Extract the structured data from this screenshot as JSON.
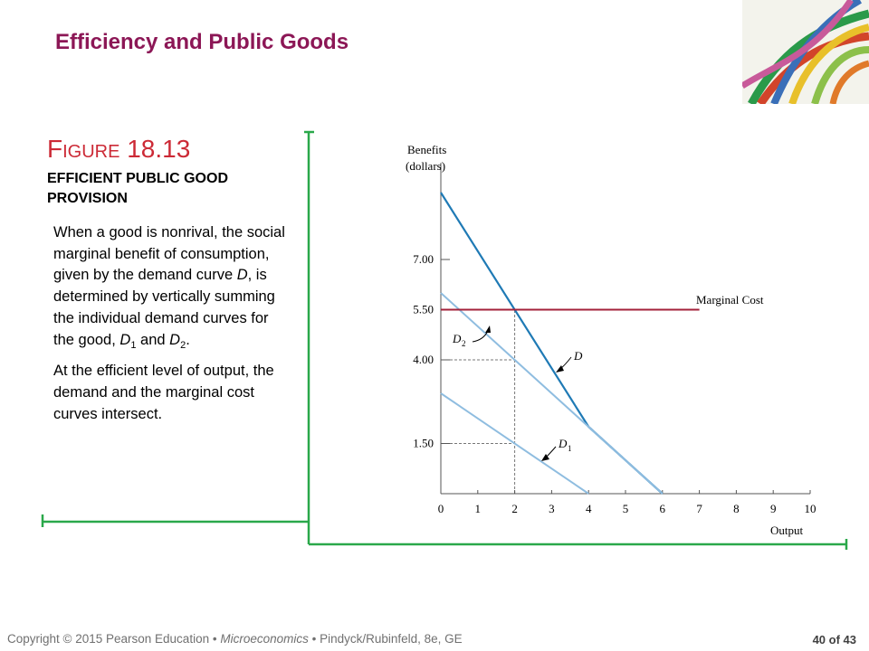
{
  "slide": {
    "title": "Efficiency and Public Goods",
    "figure_word_cap": "F",
    "figure_word_rest": "IGURE",
    "figure_number": "18.13",
    "figure_caption": "EFFICIENT PUBLIC GOOD PROVISION",
    "paragraph1": {
      "a": "When a good is nonrival, the social marginal benefit of consumption, given by the demand curve ",
      "d": "D",
      "b": ", is determined by vertically summing the individual demand curves for the good, ",
      "d1_main": "D",
      "d1_sub": "1",
      "c": " and ",
      "d2_main": "D",
      "d2_sub": "2",
      "e": "."
    },
    "paragraph2": "At the efficient level of output, the demand and the marginal cost curves intersect."
  },
  "footer": {
    "copyright": "Copyright © 2015  Pearson Education • ",
    "book": "Microeconomics",
    "authors": " •  Pindyck/Rubinfeld, 8e, GE",
    "page": "40 of 43"
  },
  "colors": {
    "title": "#8c1756",
    "figure_label": "#cc2a36",
    "frame": "#2aa84a",
    "demand": "#1f7ab5",
    "individual_demand": "#8fbde0",
    "marginal_cost": "#a3203a"
  },
  "chart_data": {
    "type": "line",
    "ylabel_line1": "Benefits",
    "ylabel_line2": "(dollars)",
    "xlabel": "Output",
    "xlim": [
      0,
      10
    ],
    "ylim": [
      0,
      10
    ],
    "x_ticks": [
      "0",
      "1",
      "2",
      "3",
      "4",
      "5",
      "6",
      "7",
      "8",
      "9",
      "10"
    ],
    "y_ticks": [
      {
        "value": 7.0,
        "label": "7.00"
      },
      {
        "value": 5.5,
        "label": "5.50"
      },
      {
        "value": 4.0,
        "label": "4.00"
      },
      {
        "value": 1.5,
        "label": "1.50"
      }
    ],
    "series": [
      {
        "name": "D",
        "x": [
          0,
          4,
          6
        ],
        "y": [
          9.0,
          2.0,
          0.0
        ]
      },
      {
        "name": "D",
        "sub": "2",
        "x": [
          0,
          6
        ],
        "y": [
          6.0,
          0.0
        ]
      },
      {
        "name": "D",
        "sub": "1",
        "x": [
          0,
          4
        ],
        "y": [
          3.0,
          0.0
        ]
      },
      {
        "name": "Marginal Cost",
        "x": [
          0,
          7
        ],
        "y": [
          5.5,
          5.5
        ]
      }
    ],
    "guides": [
      {
        "x": [
          2,
          2
        ],
        "y": [
          0,
          5.5
        ]
      },
      {
        "x": [
          0,
          2
        ],
        "y": [
          4.0,
          4.0
        ]
      },
      {
        "x": [
          0,
          2
        ],
        "y": [
          1.5,
          1.5
        ]
      }
    ]
  }
}
